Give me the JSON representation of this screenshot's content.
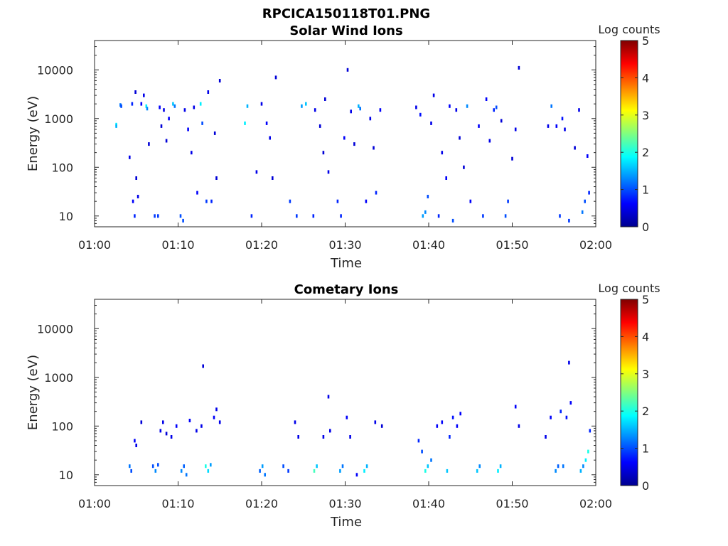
{
  "figure_title": "RPCICA150118T01.PNG",
  "colormap": [
    "#00008f",
    "#0000ff",
    "#0080ff",
    "#00ffff",
    "#80ff80",
    "#ffff00",
    "#ff8000",
    "#ff0000",
    "#800000"
  ],
  "chart_data": [
    {
      "type": "heatmap",
      "title": "Solar Wind Ions",
      "xlabel": "Time",
      "ylabel": "Energy (eV)",
      "x_ticks": [
        "01:00",
        "01:10",
        "01:20",
        "01:30",
        "01:40",
        "01:50",
        "02:00"
      ],
      "x_range_minutes": [
        0,
        60
      ],
      "y_scale": "log",
      "y_range": [
        6,
        40000
      ],
      "y_ticks": [
        10,
        100,
        1000,
        10000
      ],
      "y_tick_labels": [
        "10",
        "100",
        "1000",
        "10000"
      ],
      "colorbar": {
        "label": "Log counts",
        "range": [
          0,
          5
        ],
        "ticks": [
          "0",
          "1",
          "2",
          "3",
          "4",
          "5"
        ]
      },
      "grid": false,
      "cells": [
        [
          2.6,
          750,
          1.8
        ],
        [
          2.6,
          700,
          1.5
        ],
        [
          3.1,
          1900,
          1.2
        ],
        [
          3.2,
          1800,
          1.0
        ],
        [
          4.2,
          160,
          0.5
        ],
        [
          4.5,
          2000,
          0.8
        ],
        [
          4.6,
          20,
          0.6
        ],
        [
          4.8,
          10,
          0.8
        ],
        [
          4.9,
          3500,
          0.4
        ],
        [
          5.0,
          60,
          0.4
        ],
        [
          5.2,
          25,
          0.5
        ],
        [
          5.6,
          2000,
          0.6
        ],
        [
          5.9,
          3000,
          0.5
        ],
        [
          6.2,
          1800,
          1.8
        ],
        [
          6.3,
          1600,
          1.3
        ],
        [
          6.5,
          300,
          0.4
        ],
        [
          7.2,
          10,
          0.9
        ],
        [
          7.6,
          10,
          0.9
        ],
        [
          7.8,
          1700,
          0.6
        ],
        [
          8.0,
          700,
          0.4
        ],
        [
          8.3,
          1500,
          0.5
        ],
        [
          8.6,
          350,
          0.4
        ],
        [
          8.9,
          1000,
          0.6
        ],
        [
          9.4,
          2000,
          1.6
        ],
        [
          9.6,
          1800,
          1.2
        ],
        [
          10.3,
          10,
          1.0
        ],
        [
          10.6,
          8,
          1.0
        ],
        [
          10.8,
          1500,
          0.5
        ],
        [
          11.2,
          600,
          0.6
        ],
        [
          11.6,
          200,
          0.5
        ],
        [
          11.9,
          1700,
          0.5
        ],
        [
          12.3,
          30,
          0.6
        ],
        [
          12.7,
          2000,
          1.8
        ],
        [
          12.9,
          800,
          1.0
        ],
        [
          13.4,
          20,
          0.9
        ],
        [
          13.6,
          3500,
          0.5
        ],
        [
          14.0,
          20,
          0.8
        ],
        [
          14.4,
          500,
          0.4
        ],
        [
          14.6,
          60,
          0.4
        ],
        [
          15.0,
          6000,
          0.4
        ],
        [
          18.0,
          800,
          1.8
        ],
        [
          18.3,
          1800,
          1.5
        ],
        [
          18.8,
          10,
          0.8
        ],
        [
          19.4,
          80,
          0.5
        ],
        [
          20.0,
          2000,
          0.5
        ],
        [
          20.6,
          800,
          0.6
        ],
        [
          21.0,
          400,
          0.5
        ],
        [
          21.3,
          60,
          0.4
        ],
        [
          21.7,
          7000,
          0.4
        ],
        [
          23.4,
          20,
          0.9
        ],
        [
          24.2,
          10,
          0.9
        ],
        [
          24.8,
          1800,
          1.4
        ],
        [
          25.3,
          2000,
          1.6
        ],
        [
          26.2,
          10,
          0.8
        ],
        [
          26.4,
          1500,
          0.5
        ],
        [
          27.0,
          700,
          0.4
        ],
        [
          27.4,
          200,
          0.4
        ],
        [
          27.6,
          2500,
          0.4
        ],
        [
          28.0,
          80,
          0.5
        ],
        [
          29.1,
          20,
          0.8
        ],
        [
          29.5,
          10,
          0.8
        ],
        [
          29.9,
          400,
          0.6
        ],
        [
          30.3,
          10000,
          0.4
        ],
        [
          30.7,
          1400,
          0.5
        ],
        [
          31.1,
          300,
          0.4
        ],
        [
          31.6,
          1800,
          1.5
        ],
        [
          31.8,
          1600,
          1.2
        ],
        [
          32.5,
          20,
          0.6
        ],
        [
          33.0,
          1000,
          0.5
        ],
        [
          33.4,
          250,
          0.4
        ],
        [
          33.7,
          30,
          0.8
        ],
        [
          34.2,
          1500,
          0.6
        ],
        [
          38.5,
          1700,
          0.5
        ],
        [
          39.0,
          1200,
          0.7
        ],
        [
          39.3,
          10,
          1.4
        ],
        [
          39.6,
          12,
          1.3
        ],
        [
          39.9,
          25,
          1.0
        ],
        [
          40.3,
          800,
          0.5
        ],
        [
          40.6,
          3000,
          0.5
        ],
        [
          41.2,
          10,
          0.8
        ],
        [
          41.6,
          200,
          0.5
        ],
        [
          42.1,
          60,
          0.6
        ],
        [
          42.5,
          1800,
          0.6
        ],
        [
          42.9,
          8,
          1.0
        ],
        [
          43.3,
          1500,
          0.5
        ],
        [
          43.7,
          400,
          0.4
        ],
        [
          44.2,
          100,
          0.4
        ],
        [
          44.6,
          1800,
          1.3
        ],
        [
          45.0,
          20,
          0.6
        ],
        [
          46.0,
          700,
          0.6
        ],
        [
          46.5,
          10,
          0.9
        ],
        [
          46.9,
          2500,
          0.6
        ],
        [
          47.3,
          350,
          0.5
        ],
        [
          47.8,
          1500,
          0.8
        ],
        [
          48.1,
          1700,
          1.0
        ],
        [
          48.7,
          900,
          0.4
        ],
        [
          49.2,
          10,
          1.0
        ],
        [
          49.5,
          20,
          0.9
        ],
        [
          50.0,
          150,
          0.4
        ],
        [
          50.4,
          600,
          0.5
        ],
        [
          50.8,
          11000,
          0.4
        ],
        [
          54.3,
          700,
          0.5
        ],
        [
          54.7,
          1800,
          1.2
        ],
        [
          55.3,
          700,
          0.6
        ],
        [
          55.7,
          10,
          0.9
        ],
        [
          56.0,
          1000,
          0.7
        ],
        [
          56.3,
          600,
          0.5
        ],
        [
          56.8,
          8,
          0.9
        ],
        [
          57.5,
          250,
          0.4
        ],
        [
          58.0,
          1500,
          0.5
        ],
        [
          58.4,
          12,
          1.2
        ],
        [
          58.7,
          20,
          1.0
        ],
        [
          59.0,
          170,
          0.6
        ],
        [
          59.2,
          30,
          0.8
        ]
      ]
    },
    {
      "type": "heatmap",
      "title": "Cometary Ions",
      "xlabel": "Time",
      "ylabel": "Energy (eV)",
      "x_ticks": [
        "01:00",
        "01:10",
        "01:20",
        "01:30",
        "01:40",
        "01:50",
        "02:00"
      ],
      "x_range_minutes": [
        0,
        60
      ],
      "y_scale": "log",
      "y_range": [
        6,
        40000
      ],
      "y_ticks": [
        10,
        100,
        1000,
        10000
      ],
      "y_tick_labels": [
        "10",
        "100",
        "1000",
        "10000"
      ],
      "colorbar": {
        "label": "Log counts",
        "range": [
          0,
          5
        ],
        "ticks": [
          "0",
          "1",
          "2",
          "3",
          "4",
          "5"
        ]
      },
      "grid": false,
      "cells": [
        [
          4.2,
          15,
          1.2
        ],
        [
          4.4,
          12,
          1.0
        ],
        [
          4.8,
          50,
          0.6
        ],
        [
          5.0,
          40,
          0.5
        ],
        [
          5.6,
          120,
          0.4
        ],
        [
          7.0,
          15,
          1.0
        ],
        [
          7.3,
          12,
          1.3
        ],
        [
          7.6,
          16,
          1.0
        ],
        [
          7.9,
          80,
          0.5
        ],
        [
          8.2,
          120,
          0.5
        ],
        [
          8.6,
          70,
          0.4
        ],
        [
          9.2,
          60,
          0.5
        ],
        [
          9.8,
          100,
          0.6
        ],
        [
          10.4,
          12,
          1.3
        ],
        [
          10.7,
          15,
          1.1
        ],
        [
          11.0,
          10,
          1.2
        ],
        [
          11.4,
          130,
          0.6
        ],
        [
          12.2,
          80,
          0.5
        ],
        [
          12.8,
          100,
          0.5
        ],
        [
          13.0,
          1700,
          0.4
        ],
        [
          13.3,
          15,
          2.0
        ],
        [
          13.6,
          12,
          1.7
        ],
        [
          13.9,
          16,
          1.4
        ],
        [
          14.3,
          150,
          0.6
        ],
        [
          14.6,
          220,
          0.5
        ],
        [
          15.0,
          120,
          0.5
        ],
        [
          19.8,
          12,
          1.1
        ],
        [
          20.1,
          15,
          1.4
        ],
        [
          20.4,
          10,
          1.2
        ],
        [
          22.6,
          15,
          1.0
        ],
        [
          23.2,
          12,
          0.9
        ],
        [
          24.0,
          120,
          0.5
        ],
        [
          24.4,
          60,
          0.5
        ],
        [
          26.3,
          12,
          2.2
        ],
        [
          26.6,
          15,
          1.6
        ],
        [
          27.4,
          60,
          0.5
        ],
        [
          28.0,
          400,
          0.5
        ],
        [
          28.2,
          80,
          0.5
        ],
        [
          29.4,
          12,
          1.4
        ],
        [
          29.7,
          15,
          1.2
        ],
        [
          30.2,
          150,
          0.6
        ],
        [
          30.6,
          60,
          0.5
        ],
        [
          31.4,
          10,
          0.6
        ],
        [
          32.3,
          12,
          1.8
        ],
        [
          32.6,
          15,
          1.5
        ],
        [
          33.6,
          120,
          0.5
        ],
        [
          34.4,
          100,
          0.4
        ],
        [
          38.8,
          50,
          0.8
        ],
        [
          39.2,
          30,
          1.0
        ],
        [
          39.6,
          12,
          2.0
        ],
        [
          39.9,
          15,
          1.6
        ],
        [
          40.3,
          20,
          1.2
        ],
        [
          41.0,
          100,
          0.6
        ],
        [
          41.6,
          120,
          0.6
        ],
        [
          42.2,
          12,
          1.6
        ],
        [
          42.5,
          60,
          0.8
        ],
        [
          42.9,
          150,
          0.7
        ],
        [
          43.4,
          100,
          0.6
        ],
        [
          43.8,
          180,
          0.6
        ],
        [
          45.8,
          12,
          1.6
        ],
        [
          46.1,
          15,
          1.3
        ],
        [
          48.3,
          12,
          1.8
        ],
        [
          48.6,
          15,
          1.5
        ],
        [
          50.4,
          250,
          0.6
        ],
        [
          50.8,
          100,
          0.5
        ],
        [
          54.0,
          60,
          0.5
        ],
        [
          54.6,
          150,
          0.6
        ],
        [
          55.2,
          12,
          1.3
        ],
        [
          55.5,
          15,
          1.1
        ],
        [
          55.8,
          200,
          0.8
        ],
        [
          56.1,
          15,
          1.2
        ],
        [
          56.5,
          150,
          0.7
        ],
        [
          56.8,
          2000,
          0.5
        ],
        [
          57.0,
          300,
          0.6
        ],
        [
          58.2,
          12,
          1.5
        ],
        [
          58.5,
          15,
          1.3
        ],
        [
          58.8,
          20,
          1.8
        ],
        [
          59.1,
          30,
          2.0
        ],
        [
          59.3,
          80,
          0.8
        ]
      ]
    }
  ]
}
